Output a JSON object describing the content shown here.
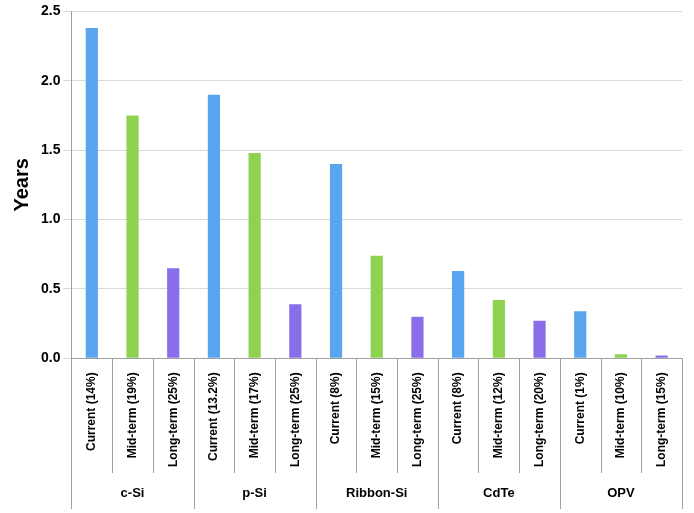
{
  "chart_data": {
    "type": "bar",
    "ylabel": "Years",
    "groups": [
      {
        "name": "c-Si",
        "categories": [
          "Current (14%)",
          "Mid-term (19%)",
          "Long-term (25%)"
        ],
        "values": [
          2.38,
          1.75,
          0.65
        ],
        "colors": [
          "#5aa5f0",
          "#8fd24f",
          "#8a6de9"
        ]
      },
      {
        "name": "p-Si",
        "categories": [
          "Current (13.2%)",
          "Mid-term (17%)",
          "Long-term (25%)"
        ],
        "values": [
          1.9,
          1.48,
          0.39
        ],
        "colors": [
          "#5aa5f0",
          "#8fd24f",
          "#8a6de9"
        ]
      },
      {
        "name": "Ribbon-Si",
        "categories": [
          "Current (8%)",
          "Mid-term (15%)",
          "Long-term (25%)"
        ],
        "values": [
          1.4,
          0.74,
          0.3
        ],
        "colors": [
          "#5aa5f0",
          "#8fd24f",
          "#8a6de9"
        ]
      },
      {
        "name": "CdTe",
        "categories": [
          "Current (8%)",
          "Mid-term (12%)",
          "Long-term (20%)"
        ],
        "values": [
          0.63,
          0.42,
          0.27
        ],
        "colors": [
          "#5aa5f0",
          "#8fd24f",
          "#8a6de9"
        ]
      },
      {
        "name": "OPV",
        "categories": [
          "Current (1%)",
          "Mid-term (10%)",
          "Long-term (15%)"
        ],
        "values": [
          0.34,
          0.03,
          0.02
        ],
        "colors": [
          "#5aa5f0",
          "#8fd24f",
          "#8a6de9"
        ]
      }
    ],
    "ylim": [
      0,
      2.5
    ],
    "yticks": [
      {
        "value": 0,
        "label": "0.0"
      },
      0.5,
      {
        "value": 1,
        "label": "1.0"
      },
      1.5,
      {
        "value": 2,
        "label": "2.0"
      },
      2.5
    ],
    "grid": true
  }
}
